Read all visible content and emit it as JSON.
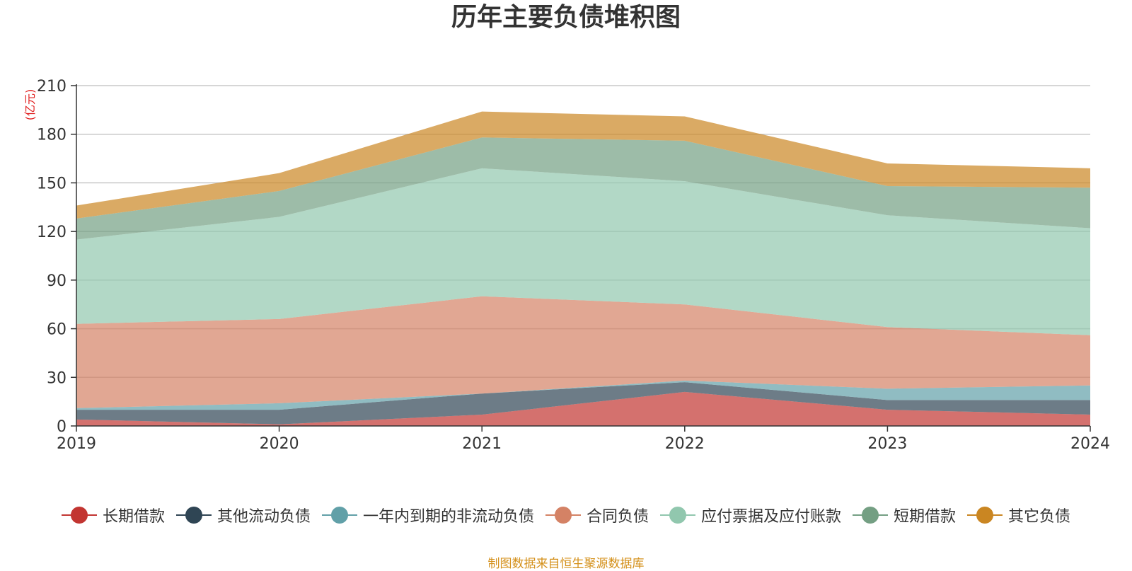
{
  "colors": {
    "长期借款": "#c23531",
    "其他流动负债": "#2f4554",
    "一年内到期的非流动负债": "#61a0a8",
    "合同负债": "#d48265",
    "应付票据及应付账款": "#91c7ae",
    "短期借款": "#749f83",
    "其它负债": "#ca8622"
  },
  "footer": {
    "source": "制图数据来自恒生聚源数据库"
  },
  "chart_data": {
    "type": "area",
    "stacked": true,
    "title": "历年主要负债堆积图",
    "unit": "(亿元)",
    "categories": [
      "2019",
      "2020",
      "2021",
      "2022",
      "2023",
      "2024"
    ],
    "ylim": [
      0,
      210
    ],
    "yticks": [
      0,
      30,
      60,
      90,
      120,
      150,
      180,
      210
    ],
    "grid": true,
    "legend_position": "bottom",
    "series": [
      {
        "name": "长期借款",
        "values": [
          4,
          1,
          7,
          21,
          10,
          7
        ]
      },
      {
        "name": "其他流动负债",
        "values": [
          6,
          9,
          13,
          6,
          6,
          9
        ]
      },
      {
        "name": "一年内到期的非流动负债",
        "values": [
          1,
          4,
          0,
          1,
          7,
          9
        ]
      },
      {
        "name": "合同负债",
        "values": [
          52,
          52,
          60,
          47,
          38,
          31
        ]
      },
      {
        "name": "应付票据及应付账款",
        "values": [
          52,
          63,
          79,
          76,
          69,
          66
        ]
      },
      {
        "name": "短期借款",
        "values": [
          13,
          16,
          19,
          25,
          18,
          25
        ]
      },
      {
        "name": "其它负债",
        "values": [
          8,
          11,
          16,
          15,
          14,
          12
        ]
      }
    ]
  }
}
